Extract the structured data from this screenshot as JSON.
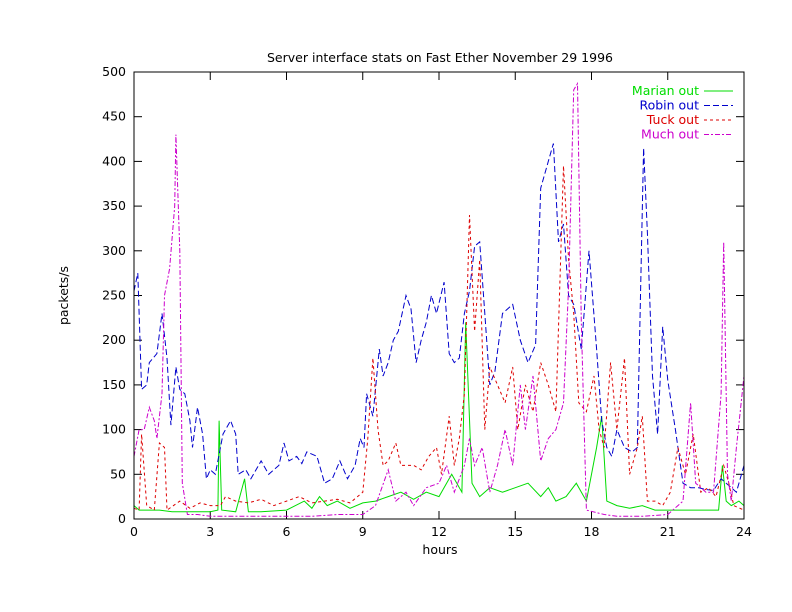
{
  "chart_data": {
    "type": "line",
    "title": "Server interface stats on Fast Ether November 29 1996",
    "xlabel": "hours",
    "ylabel": "packets/s",
    "xlim": [
      0,
      24
    ],
    "ylim": [
      0,
      500
    ],
    "xticks": [
      0,
      3,
      6,
      9,
      12,
      15,
      18,
      21,
      24
    ],
    "yticks": [
      0,
      50,
      100,
      150,
      200,
      250,
      300,
      350,
      400,
      450,
      500
    ],
    "grid": false,
    "legend": "top-right",
    "series": [
      {
        "name": "Marian out",
        "color": "#00dd00",
        "dash": "solid",
        "points": [
          [
            0,
            15
          ],
          [
            0.2,
            10
          ],
          [
            1,
            10
          ],
          [
            1.5,
            8
          ],
          [
            2,
            8
          ],
          [
            3,
            8
          ],
          [
            3.3,
            10
          ],
          [
            3.35,
            110
          ],
          [
            3.45,
            10
          ],
          [
            4,
            8
          ],
          [
            4.35,
            45
          ],
          [
            4.5,
            8
          ],
          [
            5,
            8
          ],
          [
            6,
            10
          ],
          [
            6.7,
            20
          ],
          [
            7,
            12
          ],
          [
            7.3,
            25
          ],
          [
            7.6,
            15
          ],
          [
            8,
            20
          ],
          [
            8.5,
            12
          ],
          [
            9,
            18
          ],
          [
            9.5,
            20
          ],
          [
            10,
            25
          ],
          [
            10.5,
            30
          ],
          [
            11,
            22
          ],
          [
            11.5,
            30
          ],
          [
            12,
            25
          ],
          [
            12.5,
            50
          ],
          [
            12.9,
            30
          ],
          [
            13.05,
            220
          ],
          [
            13.3,
            40
          ],
          [
            13.6,
            25
          ],
          [
            14,
            35
          ],
          [
            14.5,
            30
          ],
          [
            15,
            35
          ],
          [
            15.5,
            40
          ],
          [
            16,
            25
          ],
          [
            16.3,
            35
          ],
          [
            16.6,
            20
          ],
          [
            17,
            25
          ],
          [
            17.4,
            40
          ],
          [
            17.8,
            20
          ],
          [
            18.2,
            80
          ],
          [
            18.4,
            115
          ],
          [
            18.6,
            20
          ],
          [
            19,
            15
          ],
          [
            19.5,
            12
          ],
          [
            20,
            15
          ],
          [
            20.5,
            10
          ],
          [
            21,
            10
          ],
          [
            22,
            10
          ],
          [
            23,
            10
          ],
          [
            23.15,
            60
          ],
          [
            23.3,
            20
          ],
          [
            23.5,
            15
          ],
          [
            23.8,
            20
          ],
          [
            24,
            15
          ]
        ]
      },
      {
        "name": "Robin out",
        "color": "#0000cc",
        "dash": "6,3",
        "points": [
          [
            0,
            255
          ],
          [
            0.15,
            275
          ],
          [
            0.3,
            145
          ],
          [
            0.5,
            150
          ],
          [
            0.6,
            175
          ],
          [
            0.9,
            185
          ],
          [
            1.1,
            230
          ],
          [
            1.3,
            180
          ],
          [
            1.45,
            105
          ],
          [
            1.65,
            170
          ],
          [
            1.8,
            145
          ],
          [
            2.0,
            140
          ],
          [
            2.2,
            110
          ],
          [
            2.3,
            80
          ],
          [
            2.5,
            125
          ],
          [
            2.7,
            95
          ],
          [
            2.85,
            45
          ],
          [
            3,
            55
          ],
          [
            3.2,
            50
          ],
          [
            3.5,
            95
          ],
          [
            3.8,
            110
          ],
          [
            4.0,
            95
          ],
          [
            4.1,
            50
          ],
          [
            4.4,
            55
          ],
          [
            4.6,
            45
          ],
          [
            5,
            65
          ],
          [
            5.3,
            50
          ],
          [
            5.7,
            60
          ],
          [
            5.9,
            85
          ],
          [
            6.1,
            65
          ],
          [
            6.4,
            70
          ],
          [
            6.6,
            62
          ],
          [
            6.8,
            75
          ],
          [
            7.2,
            70
          ],
          [
            7.5,
            40
          ],
          [
            7.8,
            45
          ],
          [
            8.1,
            65
          ],
          [
            8.4,
            45
          ],
          [
            8.7,
            60
          ],
          [
            8.9,
            90
          ],
          [
            9.05,
            80
          ],
          [
            9.15,
            140
          ],
          [
            9.4,
            115
          ],
          [
            9.65,
            190
          ],
          [
            9.8,
            160
          ],
          [
            10.0,
            175
          ],
          [
            10.2,
            200
          ],
          [
            10.4,
            210
          ],
          [
            10.7,
            250
          ],
          [
            10.9,
            235
          ],
          [
            11.1,
            175
          ],
          [
            11.3,
            200
          ],
          [
            11.5,
            220
          ],
          [
            11.7,
            250
          ],
          [
            11.9,
            230
          ],
          [
            12.2,
            265
          ],
          [
            12.4,
            185
          ],
          [
            12.6,
            175
          ],
          [
            12.8,
            180
          ],
          [
            13.0,
            230
          ],
          [
            13.2,
            255
          ],
          [
            13.4,
            305
          ],
          [
            13.6,
            310
          ],
          [
            13.8,
            230
          ],
          [
            14.0,
            150
          ],
          [
            14.2,
            165
          ],
          [
            14.5,
            230
          ],
          [
            14.9,
            240
          ],
          [
            15.2,
            200
          ],
          [
            15.5,
            175
          ],
          [
            15.8,
            195
          ],
          [
            16.0,
            370
          ],
          [
            16.3,
            400
          ],
          [
            16.5,
            420
          ],
          [
            16.7,
            310
          ],
          [
            16.9,
            330
          ],
          [
            17.1,
            250
          ],
          [
            17.3,
            240
          ],
          [
            17.6,
            190
          ],
          [
            17.9,
            300
          ],
          [
            18.2,
            190
          ],
          [
            18.4,
            110
          ],
          [
            18.6,
            80
          ],
          [
            18.8,
            70
          ],
          [
            19.0,
            100
          ],
          [
            19.3,
            80
          ],
          [
            19.6,
            75
          ],
          [
            19.8,
            80
          ],
          [
            20.05,
            415
          ],
          [
            20.2,
            320
          ],
          [
            20.4,
            160
          ],
          [
            20.6,
            95
          ],
          [
            20.8,
            215
          ],
          [
            21.0,
            155
          ],
          [
            21.3,
            100
          ],
          [
            21.6,
            40
          ],
          [
            21.9,
            35
          ],
          [
            22.2,
            35
          ],
          [
            22.5,
            33
          ],
          [
            22.8,
            32
          ],
          [
            23.1,
            45
          ],
          [
            23.3,
            40
          ],
          [
            23.5,
            35
          ],
          [
            23.7,
            30
          ],
          [
            24,
            60
          ]
        ]
      },
      {
        "name": "Tuck out",
        "color": "#dd0000",
        "dash": "3,3",
        "points": [
          [
            0,
            12
          ],
          [
            0.2,
            10
          ],
          [
            0.3,
            95
          ],
          [
            0.5,
            15
          ],
          [
            0.8,
            10
          ],
          [
            1.0,
            85
          ],
          [
            1.2,
            80
          ],
          [
            1.3,
            10
          ],
          [
            1.8,
            20
          ],
          [
            2.2,
            12
          ],
          [
            2.6,
            18
          ],
          [
            3,
            15
          ],
          [
            3.4,
            15
          ],
          [
            3.6,
            25
          ],
          [
            4,
            20
          ],
          [
            4.5,
            18
          ],
          [
            5,
            22
          ],
          [
            5.5,
            15
          ],
          [
            6,
            20
          ],
          [
            6.5,
            25
          ],
          [
            7,
            18
          ],
          [
            7.5,
            20
          ],
          [
            8,
            22
          ],
          [
            8.5,
            18
          ],
          [
            9,
            30
          ],
          [
            9.2,
            90
          ],
          [
            9.4,
            180
          ],
          [
            9.6,
            100
          ],
          [
            9.8,
            60
          ],
          [
            10,
            65
          ],
          [
            10.3,
            85
          ],
          [
            10.5,
            60
          ],
          [
            11,
            60
          ],
          [
            11.3,
            55
          ],
          [
            11.6,
            70
          ],
          [
            11.9,
            80
          ],
          [
            12.1,
            50
          ],
          [
            12.4,
            115
          ],
          [
            12.6,
            60
          ],
          [
            12.8,
            90
          ],
          [
            13.0,
            140
          ],
          [
            13.2,
            340
          ],
          [
            13.4,
            210
          ],
          [
            13.6,
            290
          ],
          [
            13.8,
            100
          ],
          [
            14.0,
            170
          ],
          [
            14.3,
            150
          ],
          [
            14.6,
            130
          ],
          [
            14.9,
            170
          ],
          [
            15.1,
            100
          ],
          [
            15.4,
            150
          ],
          [
            15.7,
            120
          ],
          [
            16.0,
            175
          ],
          [
            16.3,
            150
          ],
          [
            16.6,
            120
          ],
          [
            16.9,
            395
          ],
          [
            17.1,
            290
          ],
          [
            17.3,
            230
          ],
          [
            17.5,
            130
          ],
          [
            17.8,
            120
          ],
          [
            18.1,
            160
          ],
          [
            18.3,
            100
          ],
          [
            18.5,
            80
          ],
          [
            18.75,
            175
          ],
          [
            19.0,
            100
          ],
          [
            19.3,
            180
          ],
          [
            19.5,
            50
          ],
          [
            19.8,
            80
          ],
          [
            20.0,
            115
          ],
          [
            20.2,
            20
          ],
          [
            20.5,
            20
          ],
          [
            20.8,
            15
          ],
          [
            21.1,
            30
          ],
          [
            21.4,
            80
          ],
          [
            21.7,
            50
          ],
          [
            22.0,
            95
          ],
          [
            22.3,
            30
          ],
          [
            22.6,
            35
          ],
          [
            22.9,
            25
          ],
          [
            23.2,
            60
          ],
          [
            23.4,
            40
          ],
          [
            23.6,
            15
          ],
          [
            24,
            10
          ]
        ]
      },
      {
        "name": "Much out",
        "color": "#cc00cc",
        "dash": "5,2,2,2",
        "points": [
          [
            0,
            70
          ],
          [
            0.2,
            100
          ],
          [
            0.4,
            100
          ],
          [
            0.6,
            125
          ],
          [
            0.8,
            110
          ],
          [
            0.9,
            90
          ],
          [
            1.1,
            140
          ],
          [
            1.2,
            250
          ],
          [
            1.4,
            280
          ],
          [
            1.6,
            350
          ],
          [
            1.65,
            430
          ],
          [
            1.8,
            300
          ],
          [
            1.9,
            40
          ],
          [
            2.1,
            5
          ],
          [
            2.5,
            5
          ],
          [
            3,
            3
          ],
          [
            4,
            3
          ],
          [
            5,
            3
          ],
          [
            6,
            3
          ],
          [
            7,
            3
          ],
          [
            8,
            5
          ],
          [
            9,
            5
          ],
          [
            9.5,
            15
          ],
          [
            10,
            55
          ],
          [
            10.3,
            20
          ],
          [
            10.7,
            30
          ],
          [
            11,
            15
          ],
          [
            11.5,
            35
          ],
          [
            12,
            40
          ],
          [
            12.3,
            60
          ],
          [
            12.6,
            30
          ],
          [
            13.0,
            60
          ],
          [
            13.2,
            90
          ],
          [
            13.4,
            60
          ],
          [
            13.7,
            80
          ],
          [
            14.0,
            30
          ],
          [
            14.3,
            60
          ],
          [
            14.6,
            100
          ],
          [
            14.9,
            60
          ],
          [
            15.2,
            150
          ],
          [
            15.4,
            100
          ],
          [
            15.7,
            160
          ],
          [
            16.0,
            65
          ],
          [
            16.3,
            90
          ],
          [
            16.6,
            100
          ],
          [
            16.9,
            130
          ],
          [
            17.1,
            260
          ],
          [
            17.3,
            480
          ],
          [
            17.45,
            487
          ],
          [
            17.6,
            220
          ],
          [
            17.8,
            10
          ],
          [
            18.5,
            5
          ],
          [
            19,
            3
          ],
          [
            20,
            3
          ],
          [
            21,
            5
          ],
          [
            21.6,
            20
          ],
          [
            21.9,
            130
          ],
          [
            22.1,
            40
          ],
          [
            22.5,
            30
          ],
          [
            22.8,
            30
          ],
          [
            23.1,
            140
          ],
          [
            23.2,
            310
          ],
          [
            23.35,
            50
          ],
          [
            23.5,
            20
          ],
          [
            23.7,
            80
          ],
          [
            24,
            160
          ]
        ]
      }
    ]
  }
}
